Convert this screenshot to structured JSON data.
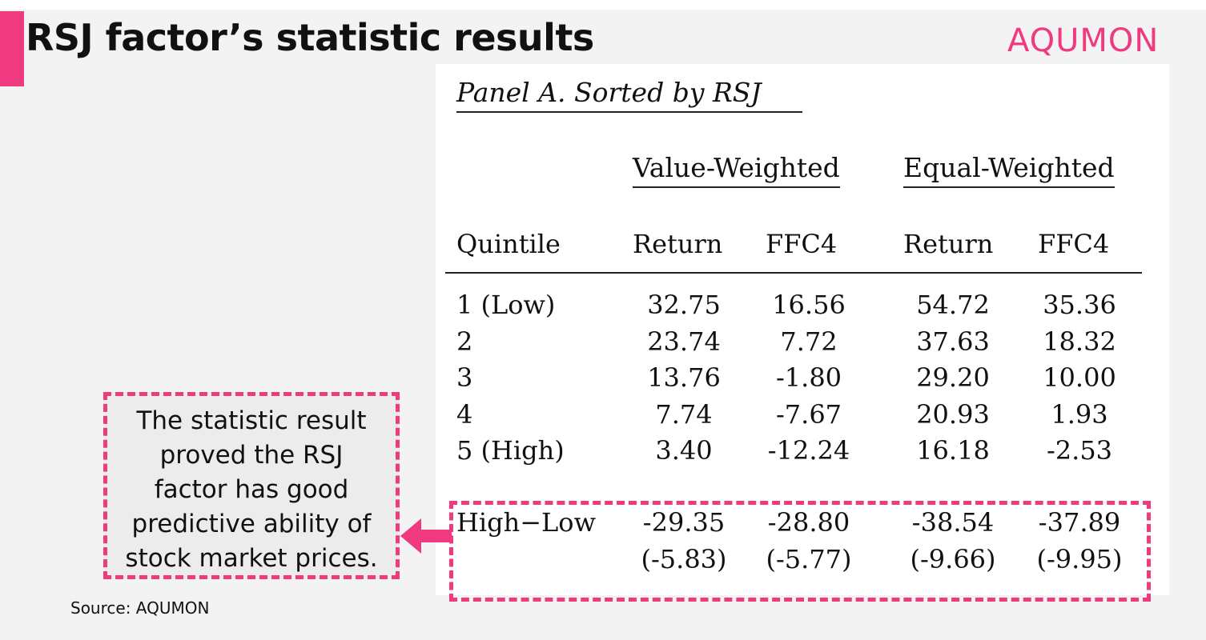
{
  "title": "RSJ factor’s statistic results",
  "logo": "AQUMON",
  "table": {
    "panel_title": "Panel A. Sorted by RSJ",
    "groups": [
      "Value-Weighted",
      "Equal-Weighted"
    ],
    "columns": [
      "Quintile",
      "Return",
      "FFC4",
      "Return",
      "FFC4"
    ],
    "rows": [
      {
        "label": "1 (Low)",
        "values": [
          "32.75",
          "16.56",
          "54.72",
          "35.36"
        ]
      },
      {
        "label": "2",
        "values": [
          "23.74",
          "7.72",
          "37.63",
          "18.32"
        ]
      },
      {
        "label": "3",
        "values": [
          "13.76",
          "-1.80",
          "29.20",
          "10.00"
        ]
      },
      {
        "label": "4",
        "values": [
          "7.74",
          "-7.67",
          "20.93",
          "1.93"
        ]
      },
      {
        "label": "5 (High)",
        "values": [
          "3.40",
          "-12.24",
          "16.18",
          "-2.53"
        ]
      }
    ],
    "high_low": {
      "label": "High−Low",
      "values": [
        "-29.35",
        "-28.80",
        "-38.54",
        "-37.89"
      ],
      "tstats": [
        "(-5.83)",
        "(-5.77)",
        "(-9.66)",
        "(-9.95)"
      ]
    }
  },
  "callout": {
    "lines": [
      "The statistic result",
      "proved the RSJ",
      "factor has good",
      "predictive ability of",
      "stock market prices."
    ]
  },
  "source": "Source: AQUMON",
  "colors": {
    "accent": "#ef3a7f",
    "background": "#f3f3f3"
  }
}
